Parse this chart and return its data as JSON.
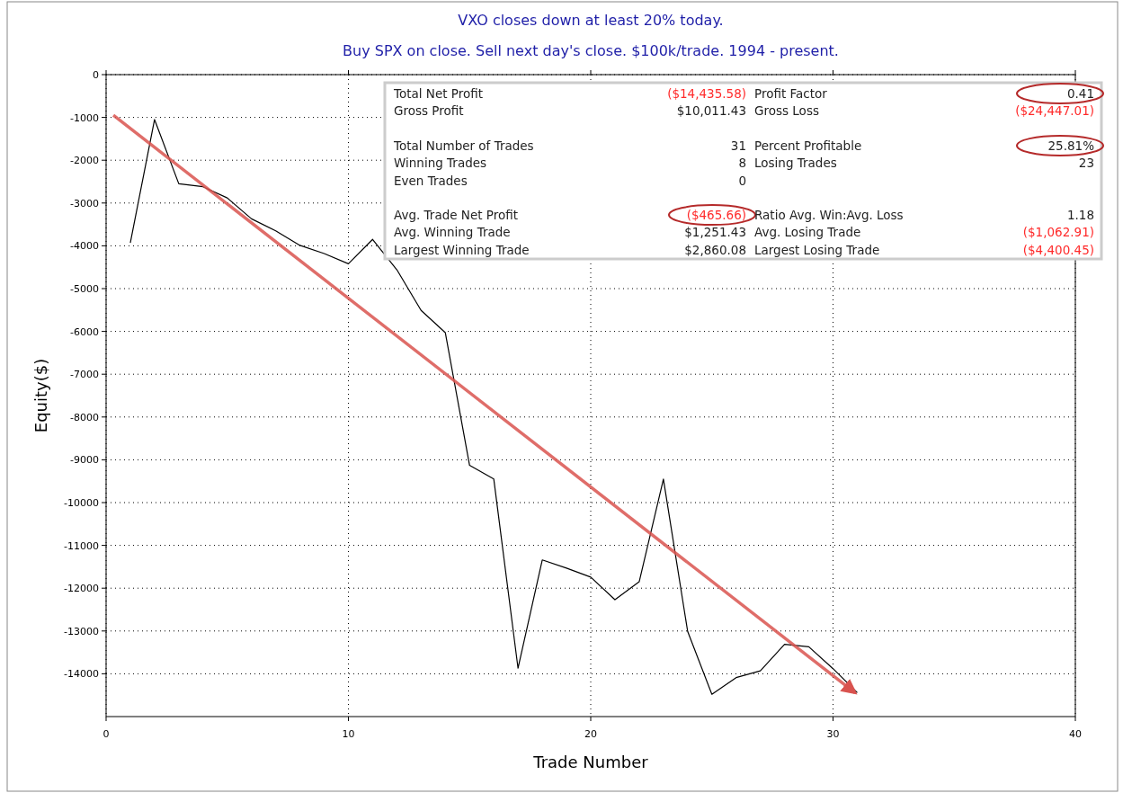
{
  "chart_data": {
    "type": "line",
    "title": "VXO closes down at least 20% today.",
    "subtitle": "Buy SPX on close. Sell next day's close. $100k/trade. 1994 - present.",
    "xlabel": "Trade Number",
    "ylabel": "Equity($)",
    "xlim": [
      0,
      40
    ],
    "xticks": [
      0,
      10,
      20,
      30,
      40
    ],
    "ylim": [
      -15000,
      0
    ],
    "yticks": [
      0,
      -1000,
      -2000,
      -3000,
      -4000,
      -5000,
      -6000,
      -7000,
      -8000,
      -9000,
      -10000,
      -11000,
      -12000,
      -13000,
      -14000
    ],
    "grid": true,
    "series": [
      {
        "type": "line",
        "color": "#000000",
        "x": [
          1,
          2,
          3,
          4,
          5,
          6,
          7,
          8,
          9,
          10,
          11,
          12,
          13,
          14,
          15,
          16,
          17,
          18,
          19,
          20,
          21,
          22,
          23,
          24,
          25,
          26,
          27,
          28,
          29,
          30,
          31
        ],
        "values": [
          -3930,
          -1050,
          -2550,
          -2620,
          -2880,
          -3370,
          -3650,
          -3990,
          -4180,
          -4420,
          -3850,
          -4560,
          -5510,
          -6030,
          -9130,
          -9450,
          -13870,
          -11340,
          -11530,
          -11740,
          -12270,
          -11850,
          -9450,
          -13010,
          -14480,
          -14090,
          -13930,
          -13310,
          -13370,
          -13880,
          -14440
        ]
      },
      {
        "type": "line",
        "color": "#d9534f",
        "x": [
          0.3,
          30.9
        ],
        "values": [
          -950,
          -14440
        ]
      }
    ],
    "annotations": [
      "Total Net Profit",
      "($14,435.58)",
      "Gross Profit",
      "$10,011.43",
      "Total Number of Trades",
      "31",
      "Winning Trades",
      "8",
      "Even Trades",
      "0",
      "Avg. Trade Net Profit",
      "($465.66)",
      "Avg. Winning Trade",
      "$1,251.43",
      "Largest Winning Trade",
      "$2,860.08",
      "Profit Factor",
      "0.41",
      "Gross Loss",
      "($24,447.01)",
      "Percent Profitable",
      "25.81%",
      "Losing Trades",
      "23",
      "Ratio Avg. Win:Avg. Loss",
      "1.18",
      "Avg. Losing Trade",
      "($1,062.91)",
      "Largest Losing Trade",
      "($4,400.45)"
    ]
  }
}
